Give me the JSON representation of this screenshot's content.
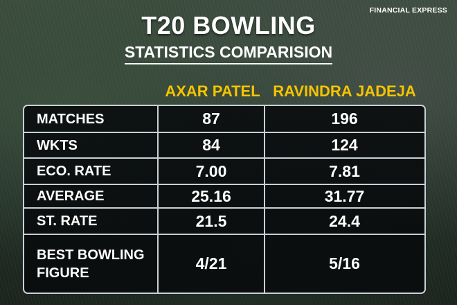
{
  "brand": "FINANCIAL EXPRESS",
  "title": "T20 BOWLING",
  "subtitle": "STATISTICS COMPARISION",
  "players": [
    "AXAR PATEL",
    "RAVINDRA JADEJA"
  ],
  "rows": [
    {
      "label": "MATCHES",
      "v1": "87",
      "v2": "196"
    },
    {
      "label": "WKTS",
      "v1": "84",
      "v2": "124"
    },
    {
      "label": "ECO. RATE",
      "v1": "7.00",
      "v2": "7.81"
    },
    {
      "label": "AVERAGE",
      "v1": "25.16",
      "v2": "31.77"
    },
    {
      "label": "ST. RATE",
      "v1": "21.5",
      "v2": "24.4"
    },
    {
      "label": "BEST BOWLING FIGURE",
      "v1": "4/21",
      "v2": "5/16"
    }
  ],
  "colors": {
    "accent": "#f5c400",
    "text": "#ffffff",
    "table_bg": "#0a0c0e",
    "border": "#c9d0d6"
  }
}
